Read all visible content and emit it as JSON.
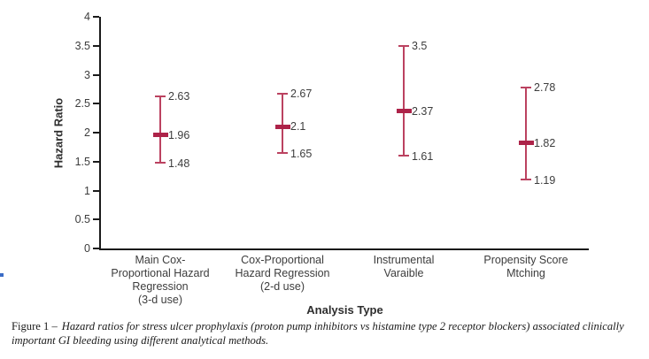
{
  "caption": {
    "label": "Figure 1 –",
    "text": "Hazard ratios for stress ulcer prophylaxis (proton pump inhibitors vs histamine type 2 receptor blockers) associated clinically important GI bleeding using different analytical methods."
  },
  "chart_data": {
    "type": "errorbar",
    "title": "",
    "xlabel": "Analysis Type",
    "ylabel": "Hazard Ratio",
    "ylim": [
      0,
      4
    ],
    "yticks": [
      4,
      3.5,
      3,
      2.5,
      2,
      1.5,
      1,
      0.5,
      0
    ],
    "grid": false,
    "legend": "none",
    "categories": [
      "Main Cox-\nProportional Hazard\nRegression\n(3-d use)",
      "Cox-Proportional\nHazard Regression\n(2-d use)",
      "Instrumental\nVaraible",
      "Propensity Score\nMtching"
    ],
    "series": [
      {
        "name": "Main Cox-Proportional Hazard Regression (3-d use)",
        "point": 1.96,
        "lower": 1.48,
        "upper": 2.63
      },
      {
        "name": "Cox-Proportional Hazard Regression (2-d use)",
        "point": 2.1,
        "lower": 1.65,
        "upper": 2.67
      },
      {
        "name": "Instrumental Varaible",
        "point": 2.37,
        "lower": 1.61,
        "upper": 3.5
      },
      {
        "name": "Propensity Score Mtching",
        "point": 1.82,
        "lower": 1.19,
        "upper": 2.78
      }
    ]
  },
  "colors": {
    "errorbar_line": "#bb4260",
    "errorbar_marker": "#ad2349",
    "axis": "#1a1a1a",
    "label_text": "#3d3d3d",
    "artifact_blue": "#3a6cc6"
  }
}
